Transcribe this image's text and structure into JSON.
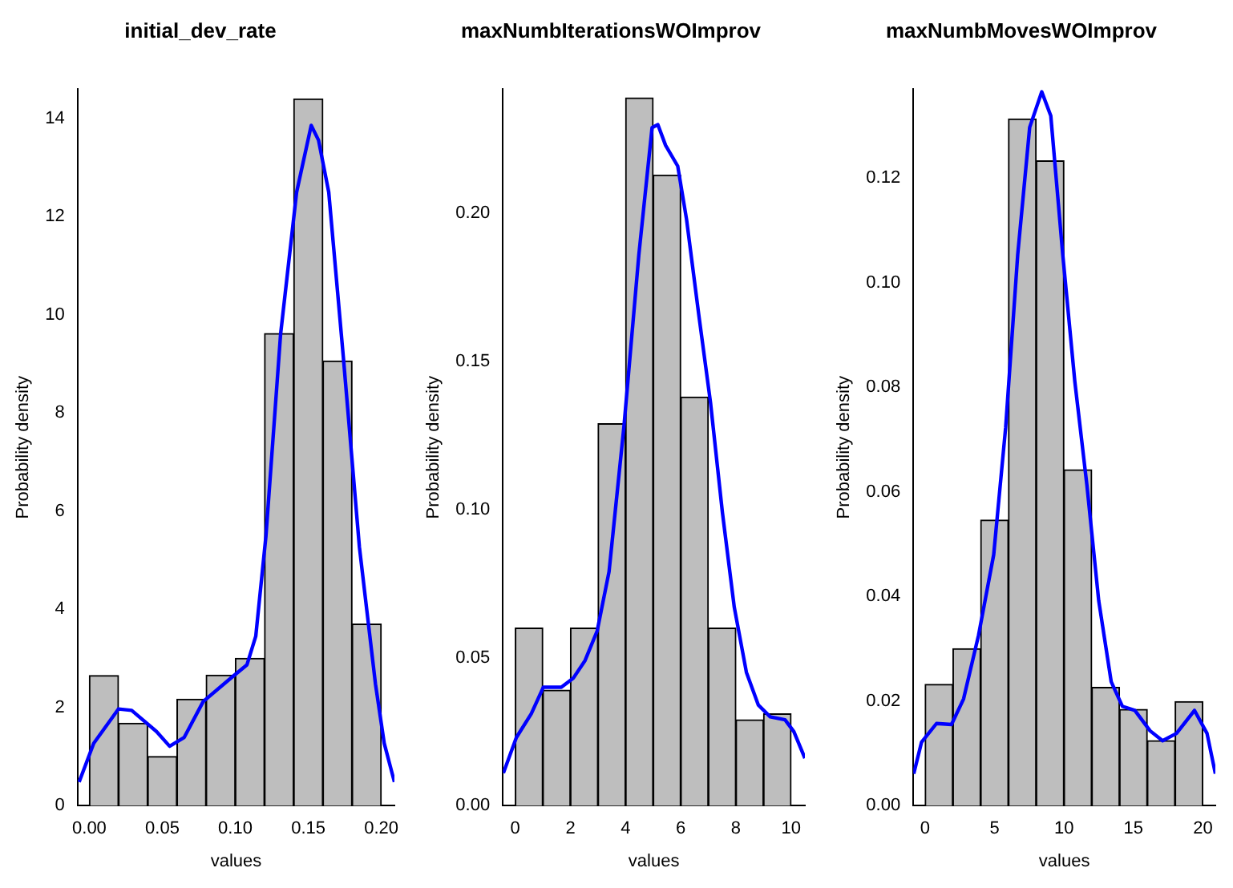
{
  "chart_data": [
    {
      "type": "histogram",
      "title": "initial_dev_rate",
      "xlabel": "values",
      "ylabel": "Probability density",
      "color": "#bebebe",
      "bins": [
        0,
        0.02,
        0.04,
        0.06,
        0.08,
        0.1,
        0.12,
        0.14,
        0.16,
        0.18,
        0.2
      ],
      "values": [
        2.65,
        1.68,
        1.0,
        2.17,
        2.66,
        3.0,
        9.62,
        14.4,
        9.06,
        3.7
      ],
      "xlim": [
        -0.008,
        0.209
      ],
      "xticks": [
        {
          "value": 0,
          "label": "0.00"
        },
        {
          "value": 0.05,
          "label": "0.05"
        },
        {
          "value": 0.1,
          "label": "0.10"
        },
        {
          "value": 0.15,
          "label": "0.15"
        },
        {
          "value": 0.2,
          "label": "0.20"
        }
      ],
      "ylim": [
        0,
        14.6
      ],
      "yticks": [
        0,
        2,
        4,
        6,
        8,
        10,
        12,
        14
      ],
      "series": [
        {
          "type": "line",
          "color": "#0000ff",
          "x": [
            -0.007,
            0.003,
            0.02,
            0.029,
            0.046,
            0.055,
            0.065,
            0.078,
            0.097,
            0.108,
            0.114,
            0.121,
            0.131,
            0.142,
            0.152,
            0.157,
            0.164,
            0.174,
            0.185,
            0.196,
            0.202,
            0.209
          ],
          "values": [
            0.48,
            1.27,
            1.97,
            1.94,
            1.51,
            1.21,
            1.39,
            2.12,
            2.6,
            2.87,
            3.45,
            5.5,
            9.6,
            12.5,
            13.86,
            13.56,
            12.5,
            9.14,
            5.27,
            2.48,
            1.27,
            0.48
          ]
        }
      ]
    },
    {
      "type": "histogram",
      "title": "maxNumbIterationsWOImprov",
      "xlabel": "values",
      "ylabel": "Probability density",
      "color": "#bebebe",
      "bins": [
        0,
        1,
        2,
        3,
        4,
        5,
        6,
        7,
        8,
        9,
        10
      ],
      "values": [
        0.06,
        0.039,
        0.06,
        0.129,
        0.239,
        0.213,
        0.138,
        0.06,
        0.029,
        0.031
      ],
      "xlim": [
        -0.45,
        10.5
      ],
      "xticks": [
        0,
        2,
        4,
        6,
        8,
        10
      ],
      "ylim": [
        0,
        0.242
      ],
      "yticks": [
        {
          "value": 0,
          "label": "0.00"
        },
        {
          "value": 0.05,
          "label": "0.05"
        },
        {
          "value": 0.1,
          "label": "0.10"
        },
        {
          "value": 0.15,
          "label": "0.15"
        },
        {
          "value": 0.2,
          "label": "0.20"
        }
      ],
      "series": [
        {
          "type": "line",
          "color": "#0000ff",
          "x": [
            -0.43,
            0.04,
            0.58,
            1.02,
            1.67,
            2.1,
            2.53,
            2.97,
            3.4,
            3.94,
            4.48,
            4.96,
            5.17,
            5.45,
            5.89,
            6.21,
            6.65,
            7.08,
            7.51,
            7.94,
            8.38,
            8.81,
            9.24,
            9.78,
            10.1,
            10.5
          ],
          "values": [
            0.011,
            0.023,
            0.031,
            0.04,
            0.04,
            0.043,
            0.049,
            0.059,
            0.079,
            0.128,
            0.186,
            0.229,
            0.23,
            0.223,
            0.216,
            0.198,
            0.166,
            0.136,
            0.099,
            0.067,
            0.045,
            0.034,
            0.03,
            0.029,
            0.025,
            0.016
          ]
        }
      ]
    },
    {
      "type": "histogram",
      "title": "maxNumbMovesWOImprov",
      "xlabel": "values",
      "ylabel": "Probability density",
      "color": "#bebebe",
      "bins": [
        0,
        2,
        4,
        6,
        8,
        10,
        12,
        14,
        16,
        18,
        20
      ],
      "values": [
        0.0232,
        0.03,
        0.0546,
        0.1313,
        0.1233,
        0.0642,
        0.0226,
        0.0184,
        0.0124,
        0.0199
      ],
      "xlim": [
        -0.85,
        20.9
      ],
      "xticks": [
        0,
        5,
        10,
        15,
        20
      ],
      "ylim": [
        0,
        0.137
      ],
      "yticks": [
        {
          "value": 0,
          "label": "0.00"
        },
        {
          "value": 0.02,
          "label": "0.02"
        },
        {
          "value": 0.04,
          "label": "0.04"
        },
        {
          "value": 0.06,
          "label": "0.06"
        },
        {
          "value": 0.08,
          "label": "0.08"
        },
        {
          "value": 0.1,
          "label": "0.10"
        },
        {
          "value": 0.12,
          "label": "0.12"
        }
      ],
      "series": [
        {
          "type": "line",
          "color": "#0000ff",
          "x": [
            -0.82,
            -0.26,
            0.82,
            1.9,
            2.77,
            3.85,
            4.94,
            5.8,
            6.67,
            7.53,
            8.4,
            9.05,
            9.91,
            10.78,
            11.65,
            12.5,
            13.4,
            14.2,
            15.1,
            16.2,
            17.1,
            18.1,
            19.4,
            20.3,
            20.9
          ],
          "values": [
            0.0061,
            0.0121,
            0.0157,
            0.0155,
            0.0204,
            0.0326,
            0.048,
            0.0723,
            0.1054,
            0.1297,
            0.1365,
            0.1319,
            0.1054,
            0.0811,
            0.0613,
            0.0392,
            0.0237,
            0.019,
            0.0182,
            0.0143,
            0.0124,
            0.0138,
            0.0182,
            0.0138,
            0.0061
          ]
        }
      ]
    }
  ]
}
